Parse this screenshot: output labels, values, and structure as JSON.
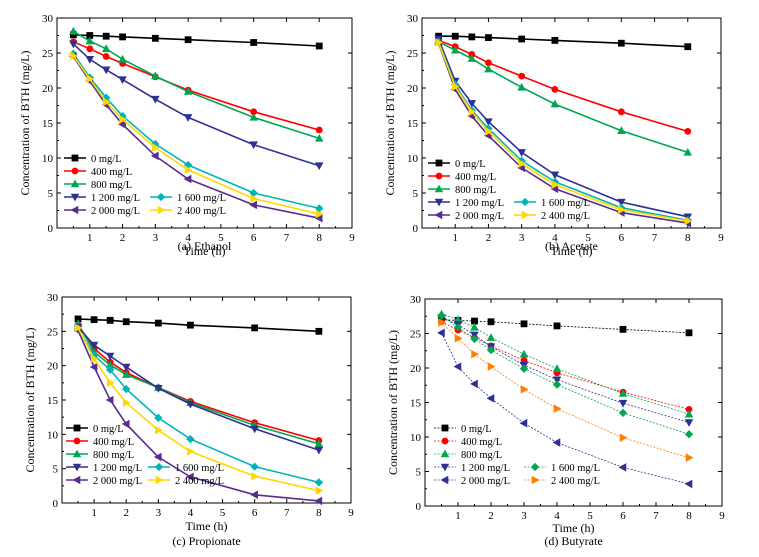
{
  "chart_data": [
    {
      "type": "line",
      "caption": "(a) Ethanol",
      "xlabel": "Time (h)",
      "ylabel": "Concentration of BTH (mg/L)",
      "xlim": [
        0,
        9
      ],
      "ylim": [
        0,
        30
      ],
      "xticks": [
        1,
        2,
        3,
        4,
        5,
        6,
        7,
        8,
        9
      ],
      "yticks": [
        0,
        5,
        10,
        15,
        20,
        25,
        30
      ],
      "legend_position": "bottom-left",
      "x": [
        0.5,
        1,
        1.5,
        2,
        3,
        4,
        6,
        8
      ],
      "series": [
        {
          "name": "0 mg/L",
          "color": "#000000",
          "marker": "square",
          "values": [
            27.6,
            27.5,
            27.4,
            27.3,
            27.1,
            26.9,
            26.5,
            26.0
          ]
        },
        {
          "name": "400 mg/L",
          "color": "#ff0000",
          "marker": "circle",
          "values": [
            26.6,
            25.6,
            24.5,
            23.5,
            21.6,
            19.7,
            16.6,
            14.0
          ]
        },
        {
          "name": "800 mg/L",
          "color": "#00a651",
          "marker": "triangle-up",
          "values": [
            28.1,
            26.7,
            25.6,
            24.1,
            21.7,
            19.5,
            15.8,
            12.8
          ]
        },
        {
          "name": "1 200 mg/L",
          "color": "#2e3192",
          "marker": "triangle-down",
          "values": [
            26.3,
            24.1,
            22.6,
            21.2,
            18.4,
            15.8,
            11.9,
            8.9
          ]
        },
        {
          "name": "1 600 mg/L",
          "color": "#00b5b8",
          "marker": "diamond",
          "values": [
            24.9,
            21.5,
            18.6,
            16.0,
            12.0,
            9.0,
            5.0,
            2.8
          ]
        },
        {
          "name": "2 000 mg/L",
          "color": "#5b2c8f",
          "marker": "triangle-left",
          "values": [
            24.5,
            21.0,
            17.6,
            14.8,
            10.3,
            7.0,
            3.3,
            1.4
          ]
        },
        {
          "name": "2 400 mg/L",
          "color": "#ffd800",
          "marker": "triangle-right",
          "values": [
            24.6,
            21.3,
            18.0,
            15.5,
            11.5,
            8.3,
            4.2,
            2.0
          ]
        }
      ]
    },
    {
      "type": "line",
      "caption": "(b) Acetate",
      "xlabel": "Time (h)",
      "ylabel": "Concentration of BTH (mg/L)",
      "xlim": [
        0,
        9
      ],
      "ylim": [
        0,
        30
      ],
      "xticks": [
        1,
        2,
        3,
        4,
        5,
        6,
        7,
        8,
        9
      ],
      "yticks": [
        0,
        5,
        10,
        15,
        20,
        25,
        30
      ],
      "legend_position": "bottom-left",
      "x": [
        0.5,
        1,
        1.5,
        2,
        3,
        4,
        6,
        8
      ],
      "series": [
        {
          "name": "0 mg/L",
          "color": "#000000",
          "marker": "square",
          "values": [
            27.4,
            27.4,
            27.3,
            27.2,
            27.0,
            26.8,
            26.4,
            25.9
          ]
        },
        {
          "name": "400 mg/L",
          "color": "#ff0000",
          "marker": "circle",
          "values": [
            26.8,
            25.9,
            24.8,
            23.6,
            21.7,
            19.8,
            16.6,
            13.8
          ]
        },
        {
          "name": "800 mg/L",
          "color": "#00a651",
          "marker": "triangle-up",
          "values": [
            26.6,
            25.4,
            24.2,
            22.7,
            20.1,
            17.7,
            13.9,
            10.8
          ]
        },
        {
          "name": "1 200 mg/L",
          "color": "#2e3192",
          "marker": "triangle-down",
          "values": [
            27.0,
            21.0,
            17.8,
            15.2,
            10.8,
            7.6,
            3.7,
            1.6
          ]
        },
        {
          "name": "1 600 mg/L",
          "color": "#00b5b8",
          "marker": "diamond",
          "values": [
            26.6,
            20.5,
            16.8,
            14.2,
            9.6,
            6.6,
            2.9,
            1.1
          ]
        },
        {
          "name": "2 000 mg/L",
          "color": "#5b2c8f",
          "marker": "triangle-left",
          "values": [
            26.4,
            19.8,
            16.0,
            13.2,
            8.6,
            5.6,
            2.2,
            0.7
          ]
        },
        {
          "name": "2 400 mg/L",
          "color": "#ffd800",
          "marker": "triangle-right",
          "values": [
            26.5,
            20.2,
            16.6,
            13.8,
            9.2,
            6.2,
            2.6,
            1.0
          ]
        }
      ]
    },
    {
      "type": "line",
      "caption": "(c) Propionate",
      "xlabel": "Time (h)",
      "ylabel": "Concentration of BTH (mg/L)",
      "xlim": [
        0,
        9
      ],
      "ylim": [
        0,
        30
      ],
      "xticks": [
        1,
        2,
        3,
        4,
        5,
        6,
        7,
        8,
        9
      ],
      "yticks": [
        0,
        5,
        10,
        15,
        20,
        25,
        30
      ],
      "legend_position": "bottom-left",
      "x": [
        0.5,
        1,
        1.5,
        2,
        3,
        4,
        6,
        8
      ],
      "series": [
        {
          "name": "0 mg/L",
          "color": "#000000",
          "marker": "square",
          "values": [
            26.8,
            26.7,
            26.6,
            26.4,
            26.2,
            25.9,
            25.5,
            25.0
          ]
        },
        {
          "name": "400 mg/L",
          "color": "#ff0000",
          "marker": "circle",
          "values": [
            25.9,
            22.5,
            20.5,
            19.0,
            16.8,
            14.8,
            11.7,
            9.1
          ]
        },
        {
          "name": "800 mg/L",
          "color": "#00a651",
          "marker": "triangle-up",
          "values": [
            26.1,
            22.0,
            20.1,
            18.7,
            16.8,
            14.6,
            11.3,
            8.6
          ]
        },
        {
          "name": "1 200 mg/L",
          "color": "#2e3192",
          "marker": "triangle-down",
          "values": [
            25.6,
            23.0,
            21.4,
            19.8,
            16.7,
            14.4,
            10.8,
            7.7
          ]
        },
        {
          "name": "1 600 mg/L",
          "color": "#00b5b8",
          "marker": "diamond",
          "values": [
            25.4,
            21.5,
            19.4,
            16.6,
            12.4,
            9.3,
            5.3,
            3.0
          ]
        },
        {
          "name": "2 000 mg/L",
          "color": "#5b2c8f",
          "marker": "triangle-left",
          "values": [
            25.1,
            19.8,
            15.0,
            11.5,
            6.7,
            3.8,
            1.2,
            0.3
          ]
        },
        {
          "name": "2 400 mg/L",
          "color": "#ffd800",
          "marker": "triangle-right",
          "values": [
            25.5,
            21.0,
            17.5,
            14.6,
            10.6,
            7.5,
            3.9,
            1.8
          ]
        }
      ]
    },
    {
      "type": "line",
      "caption": "(d) Butyrate",
      "xlabel": "Time (h)",
      "ylabel": "Concentration of BTH (mg/L)",
      "xlim": [
        0,
        9
      ],
      "ylim": [
        0,
        30
      ],
      "xticks": [
        1,
        2,
        3,
        4,
        5,
        6,
        7,
        8,
        9
      ],
      "yticks": [
        0,
        5,
        10,
        15,
        20,
        25,
        30
      ],
      "legend_position": "bottom-left",
      "x": [
        0.5,
        1,
        1.5,
        2,
        3,
        4,
        6,
        8
      ],
      "series": [
        {
          "name": "0 mg/L",
          "color": "#000000",
          "marker": "square",
          "values": [
            27.0,
            26.9,
            26.8,
            26.7,
            26.4,
            26.1,
            25.6,
            25.1
          ]
        },
        {
          "name": "400 mg/L",
          "color": "#ff0000",
          "marker": "circle",
          "values": [
            26.7,
            25.5,
            24.4,
            23.2,
            21.1,
            19.3,
            16.5,
            14.0
          ]
        },
        {
          "name": "800 mg/L",
          "color": "#00a651",
          "marker": "triangle-up",
          "values": [
            27.8,
            27.0,
            25.9,
            24.4,
            22.0,
            19.9,
            16.3,
            13.3
          ]
        },
        {
          "name": "1 200 mg/L",
          "color": "#2e3192",
          "marker": "triangle-down",
          "values": [
            27.3,
            26.3,
            24.8,
            23.1,
            20.4,
            18.3,
            14.9,
            12.1
          ]
        },
        {
          "name": "1 600 mg/L",
          "color": "#00a651",
          "marker": "diamond",
          "values": [
            27.6,
            25.9,
            24.2,
            22.6,
            19.9,
            17.6,
            13.5,
            10.4
          ]
        },
        {
          "name": "2 000 mg/L",
          "color": "#2e3192",
          "marker": "triangle-left",
          "values": [
            25.1,
            20.2,
            17.7,
            15.6,
            12.0,
            9.2,
            5.6,
            3.2
          ]
        },
        {
          "name": "2 400 mg/L",
          "color": "#ff7f00",
          "marker": "triangle-right",
          "values": [
            26.6,
            24.3,
            22.0,
            20.2,
            16.9,
            14.1,
            9.9,
            7.0
          ]
        }
      ]
    }
  ]
}
